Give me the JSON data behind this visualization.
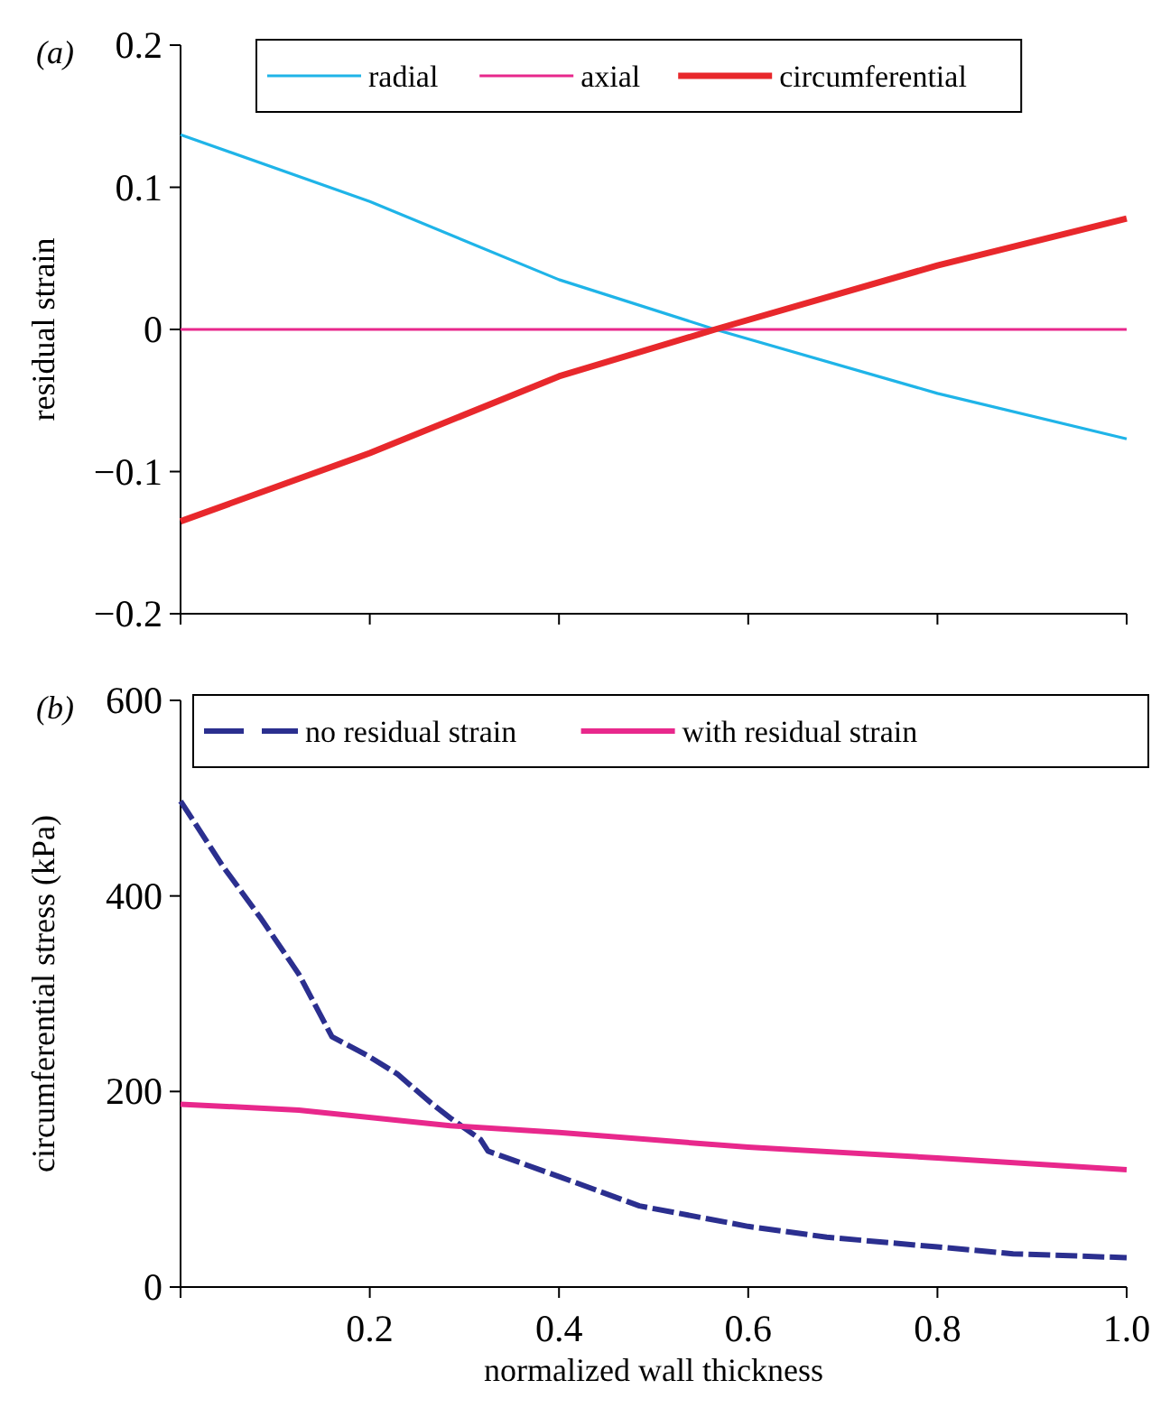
{
  "chart_data": [
    {
      "type": "line",
      "title": "(a)",
      "ylabel": "residual strain",
      "legend": "top",
      "grid": false,
      "xlim": [
        0,
        1
      ],
      "xticks": [
        {
          "value": 0,
          "label": null
        },
        {
          "value": 0.2,
          "label": null
        },
        {
          "value": 0.4,
          "label": null
        },
        {
          "value": 0.6,
          "label": null
        },
        {
          "value": 0.8,
          "label": null
        },
        {
          "value": 1,
          "label": null
        }
      ],
      "ylim": [
        -0.2,
        0.2
      ],
      "yticks": [
        {
          "value": -0.2,
          "label": "−0.2"
        },
        {
          "value": -0.1,
          "label": "−0.1"
        },
        0,
        0.1,
        0.2
      ],
      "tick_labels": "y",
      "series": [
        {
          "name": "radial",
          "color": "#1fb4e8",
          "x": [
            0,
            0.2,
            0.4,
            0.565,
            0.8,
            1
          ],
          "values": [
            0.137,
            0.09,
            0.035,
            0,
            -0.045,
            -0.077
          ]
        },
        {
          "name": "axial",
          "color": "#e8288c",
          "x": [
            0,
            1
          ],
          "values": [
            0,
            0
          ]
        },
        {
          "name": "circumferential",
          "color": "#e8282c",
          "x": [
            0,
            0.2,
            0.4,
            0.565,
            0.8,
            1
          ],
          "values": [
            -0.135,
            -0.087,
            -0.033,
            0,
            0.045,
            0.078
          ]
        }
      ]
    },
    {
      "type": "line",
      "title": "(b)",
      "xlabel": "normalized wall thickness",
      "ylabel": "circumferential stress (kPa)",
      "legend": "top",
      "grid": false,
      "xlim": [
        0,
        1
      ],
      "xticks": [
        {
          "value": 0,
          "label": null
        },
        0.2,
        0.4,
        0.6,
        0.8,
        {
          "value": 1,
          "label": "1.0"
        }
      ],
      "ylim": [
        0,
        600
      ],
      "yticks": [
        0,
        200,
        400,
        600
      ],
      "series": [
        {
          "name": "no residual strain",
          "color": "#2b2f8f",
          "line_style": "dashed",
          "x": [
            0,
            0.045,
            0.085,
            0.125,
            0.16,
            0.197,
            0.229,
            0.265,
            0.285,
            0.317,
            0.325,
            0.4,
            0.485,
            0.6,
            0.683,
            0.8,
            0.88,
            1
          ],
          "values": [
            497,
            430,
            377,
            320,
            256,
            237,
            218,
            188,
            173,
            151,
            139,
            113,
            83,
            62,
            51,
            41,
            34,
            30
          ]
        },
        {
          "name": "with residual strain",
          "color": "#e8288c",
          "x": [
            0,
            0.125,
            0.285,
            0.4,
            0.6,
            0.8,
            1
          ],
          "values": [
            187,
            181,
            165,
            158,
            143,
            132,
            120
          ]
        }
      ]
    }
  ]
}
